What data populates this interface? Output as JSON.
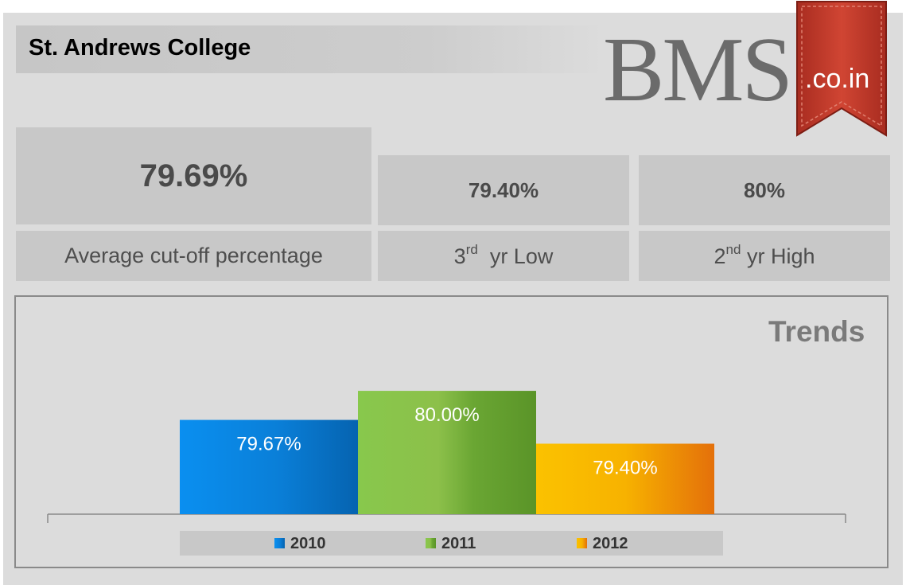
{
  "header": {
    "title": "St. Andrews College",
    "logo_main": "BMS",
    "logo_ribbon": ".co.in"
  },
  "stats": {
    "average": {
      "value": "79.69%",
      "label": "Average cut-off percentage"
    },
    "low": {
      "value": "79.40%",
      "label_num": "3",
      "label_sup": "rd",
      "label_rest": "  yr Low"
    },
    "high": {
      "value": "80%",
      "label_num": "2",
      "label_sup": "nd",
      "label_rest": " yr High"
    }
  },
  "colors": {
    "ribbon": "#c43a2a",
    "bar_2010": "#0a7fd8",
    "bar_2011": "#6aa633",
    "bar_2012": "#f5a300"
  },
  "chart_data": {
    "type": "bar",
    "title": "Trends",
    "categories": [
      "2010",
      "2011",
      "2012"
    ],
    "values": [
      79.67,
      80.0,
      79.4
    ],
    "data_labels": [
      "79.67%",
      "80.00%",
      "79.40%"
    ],
    "ylim": [
      78.6,
      80.1
    ],
    "legend": "bottom",
    "grid": false
  }
}
